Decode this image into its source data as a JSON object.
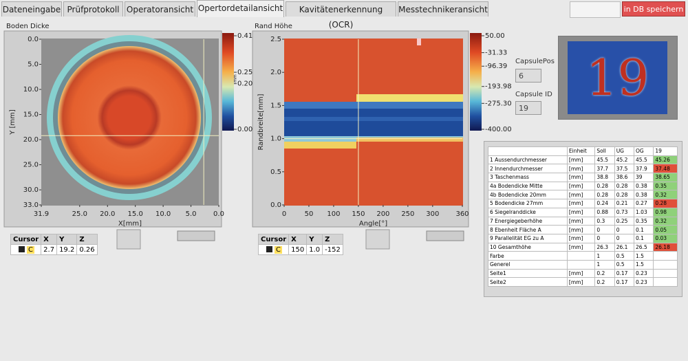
{
  "tabs": [
    "Dateneingabe",
    "Prüfprotokoll",
    "Operatoransicht",
    "Opertordetailansicht",
    "Kavitätenerkennung (OCR)",
    "Messtechnikeransicht"
  ],
  "active_tab": 3,
  "save_button": "in DB speichern",
  "plots": [
    {
      "title": "Boden Dicke",
      "x_label": "X[mm]",
      "y_label": "Y [mm]",
      "xlim": [
        31.9,
        0
      ],
      "xticks": [
        {
          "value": 31.9,
          "label": "31.9"
        },
        {
          "value": 25,
          "label": "25.0"
        },
        {
          "value": 20,
          "label": "20.0"
        },
        {
          "value": 15,
          "label": "15.0"
        },
        {
          "value": 10,
          "label": "10.0"
        },
        {
          "value": 5,
          "label": "5.0"
        },
        {
          "value": 0,
          "label": "0.0"
        }
      ],
      "ylim": [
        0,
        33
      ],
      "yticks": [
        {
          "value": 0,
          "label": "0.0"
        },
        {
          "value": 5,
          "label": "5.0"
        },
        {
          "value": 10,
          "label": "10.0"
        },
        {
          "value": 15,
          "label": "15.0"
        },
        {
          "value": 20,
          "label": "20.0"
        },
        {
          "value": 25,
          "label": "25.0"
        },
        {
          "value": 30,
          "label": "30.0"
        },
        {
          "value": 33,
          "label": "33.0"
        }
      ],
      "colorbar": {
        "unit": "mm",
        "lim": [
          0,
          0.41
        ],
        "ticks": [
          {
            "value": 0.41,
            "label": "0.41"
          },
          {
            "value": 0.25,
            "label": "0.25"
          },
          {
            "value": 0.2,
            "label": "0.20"
          },
          {
            "value": 0,
            "label": "0.00"
          }
        ]
      },
      "cursor": {
        "name": "C",
        "values": [
          "2.7",
          "19.2",
          "0.26"
        ]
      }
    },
    {
      "title": "Rand Höhe",
      "x_label": "Angle[°]",
      "y_label": "Randbreite[mm]",
      "xlim": [
        0,
        360
      ],
      "xticks": [
        0,
        50,
        100,
        150,
        200,
        250,
        300,
        360
      ],
      "ylim": [
        0,
        2.5
      ],
      "yticks": [
        {
          "value": 0,
          "label": "0.0"
        },
        {
          "value": 0.5,
          "label": "0.5"
        },
        {
          "value": 1,
          "label": "1.0"
        },
        {
          "value": 1.5,
          "label": "1.5"
        },
        {
          "value": 2,
          "label": "2.0"
        },
        {
          "value": 2.5,
          "label": "2.5"
        }
      ],
      "colorbar": {
        "lim": [
          -400,
          50
        ],
        "ticks": [
          {
            "value": 50,
            "label": "50.00"
          },
          {
            "value": -31.33,
            "label": "-31.33"
          },
          {
            "value": -96.39,
            "label": "-96.39"
          },
          {
            "value": -193.98,
            "label": "-193.98"
          },
          {
            "value": -275.3,
            "label": "-275.30"
          },
          {
            "value": -400,
            "label": "-400.00"
          }
        ]
      },
      "cursor": {
        "name": "C",
        "values": [
          "150",
          "1.0",
          "-152"
        ]
      }
    }
  ],
  "cursor_headers": [
    "Cursor",
    "X",
    "Y",
    "Z"
  ],
  "capsule": {
    "pos_label": "CapsulePos",
    "pos": "6",
    "id_label": "Capsule ID",
    "id": "19"
  },
  "ocr_image_text": "19",
  "results": {
    "headers": [
      "Einheit",
      "Soll",
      "UG",
      "OG",
      "19"
    ],
    "rows": [
      {
        "label": "1 Aussendurchmesser",
        "unit": "[mm]",
        "soll": "45.5",
        "ug": "45.2",
        "og": "45.5",
        "value": "45.26",
        "color": "#8fd17a"
      },
      {
        "label": "2 Innendurchmesser",
        "unit": "[mm]",
        "soll": "37.7",
        "ug": "37.5",
        "og": "37.9",
        "value": "37.48",
        "color": "#e0503a"
      },
      {
        "label": "3 Taschenmass",
        "unit": "[mm]",
        "soll": "38.8",
        "ug": "38.6",
        "og": "39",
        "value": "38.65",
        "color": "#8fd17a"
      },
      {
        "label": "4a Bodendicke Mitte",
        "unit": "[mm]",
        "soll": "0.28",
        "ug": "0.28",
        "og": "0.38",
        "value": "0.35",
        "color": "#8fd17a"
      },
      {
        "label": "4b Bodendicke 20mm",
        "unit": "[mm]",
        "soll": "0.28",
        "ug": "0.28",
        "og": "0.38",
        "value": "0.32",
        "color": "#8fd17a"
      },
      {
        "label": "5 Bodendicke 27mm",
        "unit": "[mm]",
        "soll": "0.24",
        "ug": "0.21",
        "og": "0.27",
        "value": "0.28",
        "color": "#e0503a"
      },
      {
        "label": "6 Siegelranddicke",
        "unit": "[mm]",
        "soll": "0.88",
        "ug": "0.73",
        "og": "1.03",
        "value": "0.98",
        "color": "#8fd17a"
      },
      {
        "label": "7 Energiegeberhöhe",
        "unit": "[mm]",
        "soll": "0.3",
        "ug": "0.25",
        "og": "0.35",
        "value": "0.32",
        "color": "#8fd17a"
      },
      {
        "label": "8 Ebenheit Fläche A",
        "unit": "[mm]",
        "soll": "0",
        "ug": "0",
        "og": "0.1",
        "value": "0.05",
        "color": "#8fd17a"
      },
      {
        "label": "9 Parallelität EG zu A",
        "unit": "[mm]",
        "soll": "0",
        "ug": "0",
        "og": "0.1",
        "value": "0.03",
        "color": "#8fd17a"
      },
      {
        "label": "10 Gesamthöhe",
        "unit": "[mm]",
        "soll": "26.3",
        "ug": "26.1",
        "og": "26.5",
        "value": "26.18",
        "color": "#e0503a"
      },
      {
        "label": "Farbe",
        "soll": "1",
        "ug": "0.5",
        "og": "1.5"
      },
      {
        "label": "Generel",
        "soll": "1",
        "ug": "0.5",
        "og": "1.5"
      },
      {
        "label": "Seite1",
        "unit": "[mm]",
        "soll": "0.2",
        "ug": "0.17",
        "og": "0.23"
      },
      {
        "label": "Seite2",
        "unit": "[mm]",
        "soll": "0.2",
        "ug": "0.17",
        "og": "0.23"
      }
    ]
  }
}
